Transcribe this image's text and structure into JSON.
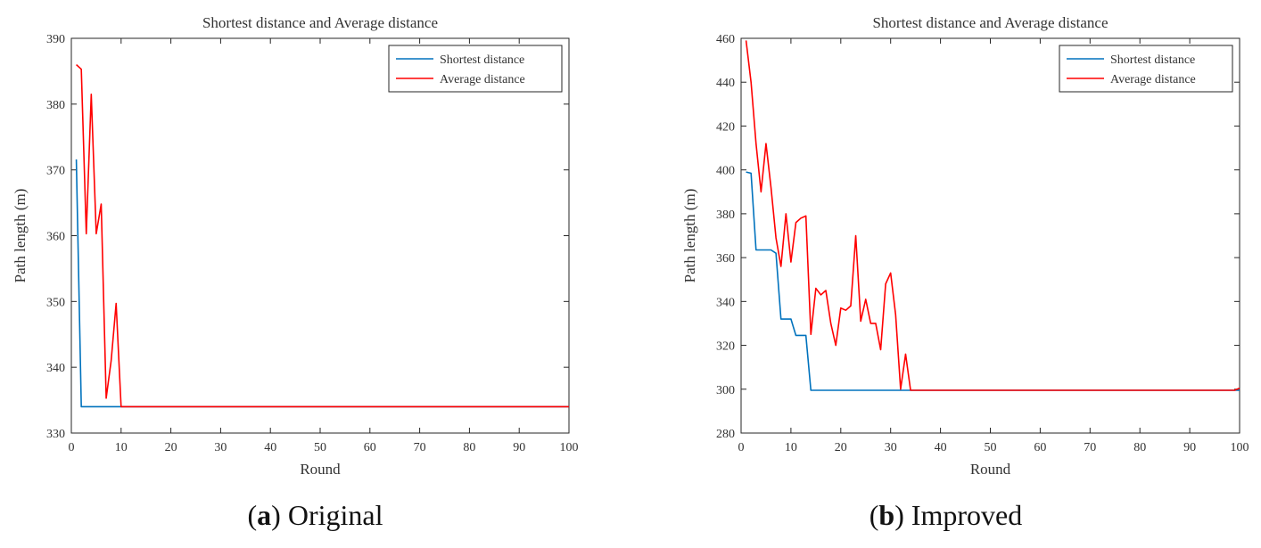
{
  "chart_data": [
    {
      "type": "line",
      "title": "Shortest distance and Average distance",
      "xlabel": "Round",
      "ylabel": "Path length (m)",
      "xlim": [
        0,
        100
      ],
      "ylim": [
        330,
        390
      ],
      "xticks": [
        0,
        10,
        20,
        30,
        40,
        50,
        60,
        70,
        80,
        90,
        100
      ],
      "yticks": [
        330,
        340,
        350,
        360,
        370,
        380,
        390
      ],
      "legend_position": "top-right",
      "caption": {
        "letter": "a",
        "text": "Original"
      },
      "series": [
        {
          "name": "Shortest distance",
          "color": "#0072BD",
          "x": [
            1,
            2,
            3,
            4,
            5,
            6,
            7,
            8,
            9,
            10,
            20,
            30,
            40,
            50,
            60,
            70,
            80,
            90,
            100
          ],
          "y": [
            371.6,
            334,
            334,
            334,
            334,
            334,
            334,
            334,
            334,
            334,
            334,
            334,
            334,
            334,
            334,
            334,
            334,
            334,
            334
          ]
        },
        {
          "name": "Average distance",
          "color": "#FF0000",
          "x": [
            1,
            2,
            3,
            4,
            5,
            6,
            7,
            8,
            9,
            10,
            20,
            30,
            40,
            50,
            60,
            70,
            80,
            90,
            100
          ],
          "y": [
            386,
            385.3,
            360.3,
            381.5,
            360.3,
            364.8,
            335.3,
            341,
            349.7,
            334,
            334,
            334,
            334,
            334,
            334,
            334,
            334,
            334,
            334
          ]
        }
      ]
    },
    {
      "type": "line",
      "title": "Shortest distance and Average distance",
      "xlabel": "Round",
      "ylabel": "Path length (m)",
      "xlim": [
        0,
        100
      ],
      "ylim": [
        280,
        460
      ],
      "xticks": [
        0,
        10,
        20,
        30,
        40,
        50,
        60,
        70,
        80,
        90,
        100
      ],
      "yticks": [
        280,
        300,
        320,
        340,
        360,
        380,
        400,
        420,
        440,
        460
      ],
      "legend_position": "top-right",
      "caption": {
        "letter": "b",
        "text": "Improved"
      },
      "series": [
        {
          "name": "Shortest distance",
          "color": "#0072BD",
          "x": [
            1,
            2,
            3,
            4,
            5,
            6,
            7,
            8,
            9,
            10,
            11,
            12,
            13,
            14,
            20,
            30,
            34,
            40,
            50,
            60,
            70,
            80,
            90,
            100
          ],
          "y": [
            399,
            398.5,
            363.5,
            363.5,
            363.5,
            363.5,
            362,
            332,
            332,
            332,
            324.5,
            324.5,
            324.5,
            299.5,
            299.5,
            299.5,
            299.5,
            299.5,
            299.5,
            299.5,
            299.5,
            299.5,
            299.5,
            299.5
          ]
        },
        {
          "name": "Average distance",
          "color": "#FF0000",
          "x": [
            1,
            2,
            3,
            4,
            5,
            6,
            7,
            8,
            9,
            10,
            11,
            12,
            13,
            14,
            15,
            16,
            17,
            18,
            19,
            20,
            21,
            22,
            23,
            24,
            25,
            26,
            27,
            28,
            29,
            30,
            31,
            32,
            33,
            34,
            40,
            50,
            60,
            70,
            80,
            90,
            99,
            100
          ],
          "y": [
            459,
            440,
            412,
            390,
            412,
            392,
            369,
            356,
            380,
            358,
            376,
            378,
            379,
            325,
            346,
            343,
            345,
            330,
            320,
            337,
            336,
            338,
            370,
            331,
            341,
            330,
            330,
            318,
            348,
            353,
            334,
            300,
            316,
            299.5,
            299.5,
            299.5,
            299.5,
            299.5,
            299.5,
            299.5,
            299.5,
            300.5
          ]
        }
      ]
    }
  ]
}
